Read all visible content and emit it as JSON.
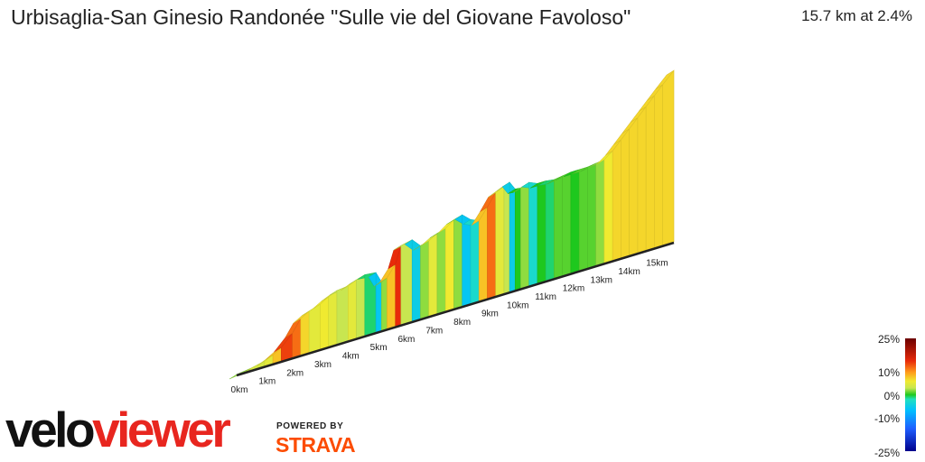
{
  "header": {
    "title": "Urbisaglia-San Ginesio Randonée \"Sulle vie del Giovane Favoloso\"",
    "summary": "15.7 km at 2.4%"
  },
  "branding": {
    "logo_part1": "velo",
    "logo_part2": "viewer",
    "powered_by": "POWERED BY",
    "strava": "STRAVA",
    "logo_colors": {
      "velo": "#111111",
      "viewer": "#e8261f",
      "strava": "#fc4c02"
    }
  },
  "chart_data": {
    "type": "area",
    "title": "Urbisaglia-San Ginesio Randonée \"Sulle vie del Giovane Favoloso\"",
    "x_unit": "km",
    "x_ticks": [
      "0km",
      "1km",
      "2km",
      "3km",
      "4km",
      "5km",
      "6km",
      "7km",
      "8km",
      "9km",
      "10km",
      "11km",
      "12km",
      "13km",
      "14km",
      "15km"
    ],
    "x_tick_values": [
      0,
      1,
      2,
      3,
      4,
      5,
      6,
      7,
      8,
      9,
      10,
      11,
      12,
      13,
      14,
      15
    ],
    "total_distance": 15.7,
    "average_gradient": 2.4,
    "profile": {
      "x": [
        0,
        0.5,
        1,
        1.3,
        1.6,
        2,
        2.3,
        2.6,
        3,
        3.3,
        3.6,
        4,
        4.3,
        4.6,
        5,
        5.2,
        5.4,
        5.7,
        5.9,
        6.3,
        6.6,
        6.9,
        7.2,
        7.5,
        7.8,
        8.1,
        8.4,
        8.7,
        9.0,
        9.3,
        9.6,
        9.8,
        10.0,
        10.2,
        10.5,
        10.8,
        11.1,
        11.4,
        11.7,
        12.0,
        12.3,
        12.6,
        12.9,
        13.2,
        13.5,
        13.8,
        14.1,
        14.4,
        14.7,
        15.0,
        15.3,
        15.7
      ],
      "elevation": [
        0,
        3,
        8,
        14,
        22,
        40,
        60,
        68,
        74,
        82,
        88,
        90,
        96,
        100,
        98,
        80,
        84,
        102,
        130,
        134,
        120,
        124,
        132,
        136,
        146,
        150,
        138,
        132,
        150,
        170,
        176,
        180,
        166,
        165,
        170,
        164,
        164,
        162,
        164,
        166,
        166,
        166,
        168,
        170,
        180,
        194,
        208,
        222,
        236,
        250,
        264,
        282
      ],
      "gradient": [
        2,
        4,
        5,
        8,
        14,
        12,
        7,
        5,
        6,
        5,
        3,
        5,
        3,
        -1,
        -6,
        2,
        8,
        15,
        3,
        -5,
        2,
        5,
        2,
        6,
        2,
        -6,
        -3,
        8,
        12,
        5,
        3,
        -5,
        0,
        2,
        -3,
        0,
        -1,
        1,
        1,
        0,
        1,
        1,
        2,
        6,
        7,
        7,
        7,
        7,
        7,
        7,
        7
      ]
    },
    "legend": {
      "title": "",
      "tick_labels": [
        "25%",
        "10%",
        "0%",
        "-10%",
        "-25%"
      ],
      "tick_values": [
        25,
        10,
        0,
        -10,
        -25
      ],
      "range": [
        -25,
        25
      ],
      "placement": "bottom-right",
      "color_stops": [
        {
          "value": -25,
          "color": "#00008b"
        },
        {
          "value": -15,
          "color": "#1e5eff"
        },
        {
          "value": -7,
          "color": "#00bfff"
        },
        {
          "value": -2,
          "color": "#20e0c0"
        },
        {
          "value": 0,
          "color": "#1ec81e"
        },
        {
          "value": 3,
          "color": "#c8e650"
        },
        {
          "value": 6,
          "color": "#f0ea30"
        },
        {
          "value": 10,
          "color": "#ff9a1a"
        },
        {
          "value": 15,
          "color": "#e82a0a"
        },
        {
          "value": 25,
          "color": "#6a0000"
        }
      ]
    }
  }
}
